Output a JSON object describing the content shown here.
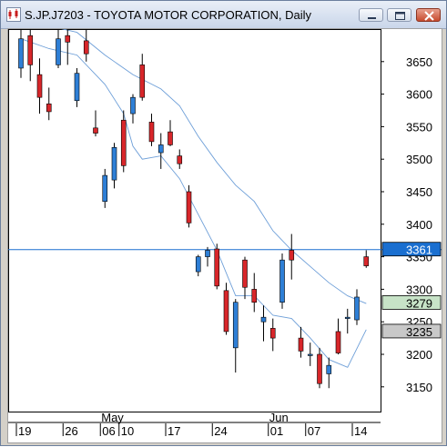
{
  "window": {
    "title": "S.JP.J7203 - TOYOTA MOTOR CORPORATION, Daily"
  },
  "icons": {
    "app": "chart-app-icon",
    "minimize": "minimize-icon",
    "restore": "restore-icon",
    "close": "close-icon"
  },
  "colors": {
    "up_candle": "#2e7fd6",
    "down_candle": "#d8262a",
    "wick": "#000000",
    "ma_line": "#6e9fd8",
    "horizontal_line": "#1a6fd0",
    "current_price_label_bg": "#1a6fd0",
    "ma_label_bg": "#c7e3c7",
    "low_label_bg": "#c8c8c8"
  },
  "chart_data": {
    "type": "candlestick",
    "symbol": "S.JP.J7203",
    "timeframe": "Daily",
    "y_ticks": [
      3650,
      3600,
      3550,
      3500,
      3450,
      3400,
      3350,
      3300,
      3250,
      3200,
      3150
    ],
    "ylim": [
      3112,
      3700
    ],
    "x_tick_labels": [
      {
        "label": "19",
        "index": 0
      },
      {
        "label": "26",
        "index": 5
      },
      {
        "label": "06",
        "index": 9
      },
      {
        "label": "10",
        "index": 11
      },
      {
        "label": "17",
        "index": 16
      },
      {
        "label": "24",
        "index": 21
      },
      {
        "label": "01",
        "index": 27
      },
      {
        "label": "07",
        "index": 31
      },
      {
        "label": "14",
        "index": 36
      }
    ],
    "month_labels": [
      {
        "label": "May",
        "index": 9
      },
      {
        "label": "Jun",
        "index": 27
      }
    ],
    "candles": [
      {
        "o": 3640,
        "h": 3700,
        "l": 3625,
        "c": 3685
      },
      {
        "o": 3690,
        "h": 3705,
        "l": 3620,
        "c": 3645
      },
      {
        "o": 3630,
        "h": 3655,
        "l": 3570,
        "c": 3595
      },
      {
        "o": 3585,
        "h": 3610,
        "l": 3560,
        "c": 3573
      },
      {
        "o": 3645,
        "h": 3700,
        "l": 3640,
        "c": 3685
      },
      {
        "o": 3690,
        "h": 3710,
        "l": 3645,
        "c": 3680
      },
      {
        "o": 3590,
        "h": 3640,
        "l": 3580,
        "c": 3632
      },
      {
        "o": 3682,
        "h": 3700,
        "l": 3650,
        "c": 3662
      },
      {
        "o": 3548,
        "h": 3575,
        "l": 3535,
        "c": 3540
      },
      {
        "o": 3435,
        "h": 3485,
        "l": 3425,
        "c": 3475
      },
      {
        "o": 3468,
        "h": 3525,
        "l": 3455,
        "c": 3518
      },
      {
        "o": 3560,
        "h": 3575,
        "l": 3480,
        "c": 3490
      },
      {
        "o": 3570,
        "h": 3600,
        "l": 3555,
        "c": 3595
      },
      {
        "o": 3645,
        "h": 3662,
        "l": 3590,
        "c": 3595
      },
      {
        "o": 3557,
        "h": 3570,
        "l": 3520,
        "c": 3527
      },
      {
        "o": 3510,
        "h": 3540,
        "l": 3485,
        "c": 3522
      },
      {
        "o": 3542,
        "h": 3560,
        "l": 3520,
        "c": 3522
      },
      {
        "o": 3505,
        "h": 3515,
        "l": 3485,
        "c": 3493
      },
      {
        "o": 3450,
        "h": 3460,
        "l": 3395,
        "c": 3402
      },
      {
        "o": 3327,
        "h": 3353,
        "l": 3320,
        "c": 3350
      },
      {
        "o": 3350,
        "h": 3365,
        "l": 3335,
        "c": 3360
      },
      {
        "o": 3362,
        "h": 3370,
        "l": 3300,
        "c": 3305
      },
      {
        "o": 3298,
        "h": 3310,
        "l": 3230,
        "c": 3235
      },
      {
        "o": 3210,
        "h": 3285,
        "l": 3172,
        "c": 3280
      },
      {
        "o": 3345,
        "h": 3350,
        "l": 3285,
        "c": 3303
      },
      {
        "o": 3300,
        "h": 3325,
        "l": 3265,
        "c": 3280
      },
      {
        "o": 3250,
        "h": 3275,
        "l": 3220,
        "c": 3257
      },
      {
        "o": 3240,
        "h": 3255,
        "l": 3205,
        "c": 3225
      },
      {
        "o": 3280,
        "h": 3355,
        "l": 3270,
        "c": 3345
      },
      {
        "o": 3360,
        "h": 3385,
        "l": 3315,
        "c": 3345
      },
      {
        "o": 3225,
        "h": 3242,
        "l": 3195,
        "c": 3205
      },
      {
        "o": 3198,
        "h": 3218,
        "l": 3182,
        "c": 3200
      },
      {
        "o": 3200,
        "h": 3210,
        "l": 3148,
        "c": 3155
      },
      {
        "o": 3170,
        "h": 3195,
        "l": 3148,
        "c": 3183
      },
      {
        "o": 3235,
        "h": 3255,
        "l": 3200,
        "c": 3202
      },
      {
        "o": 3255,
        "h": 3270,
        "l": 3232,
        "c": 3257
      },
      {
        "o": 3253,
        "h": 3300,
        "l": 3245,
        "c": 3288
      },
      {
        "o": 3350,
        "h": 3360,
        "l": 3333,
        "c": 3336
      }
    ],
    "ma_upper": [
      [
        0,
        3710
      ],
      [
        3,
        3705
      ],
      [
        6,
        3695
      ],
      [
        9,
        3660
      ],
      [
        12,
        3630
      ],
      [
        15,
        3608
      ],
      [
        17,
        3582
      ],
      [
        19,
        3535
      ],
      [
        21,
        3495
      ],
      [
        23,
        3460
      ],
      [
        25,
        3435
      ],
      [
        27,
        3390
      ],
      [
        29,
        3360
      ],
      [
        31,
        3335
      ],
      [
        33,
        3310
      ],
      [
        35,
        3290
      ],
      [
        37,
        3278
      ]
    ],
    "ma_lower": [
      [
        0,
        3685
      ],
      [
        3,
        3670
      ],
      [
        6,
        3660
      ],
      [
        9,
        3615
      ],
      [
        11,
        3570
      ],
      [
        12,
        3520
      ],
      [
        13,
        3500
      ],
      [
        15,
        3505
      ],
      [
        17,
        3470
      ],
      [
        19,
        3415
      ],
      [
        21,
        3360
      ],
      [
        23,
        3290
      ],
      [
        25,
        3290
      ],
      [
        27,
        3260
      ],
      [
        29,
        3255
      ],
      [
        31,
        3225
      ],
      [
        33,
        3192
      ],
      [
        35,
        3180
      ],
      [
        37,
        3238
      ]
    ],
    "horizontal_line": 3361,
    "price_labels": [
      {
        "value": 3361,
        "text": "3361",
        "style": "current"
      },
      {
        "value": 3279,
        "text": "3279",
        "style": "ma"
      },
      {
        "value": 3235,
        "text": "3235",
        "style": "low"
      }
    ]
  }
}
